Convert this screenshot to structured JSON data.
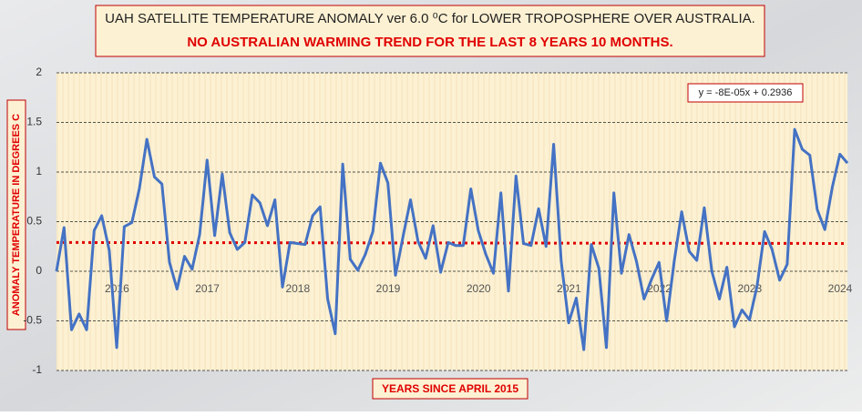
{
  "chart_data": {
    "type": "line",
    "title": "UAH SATELLITE TEMPERATURE ANOMALY ver 6.0 ⁰C for LOWER TROPOSPHERE OVER AUSTRALIA.",
    "subtitle": "NO AUSTRALIAN WARMING TREND FOR THE LAST 8 YEARS 10 MONTHS.",
    "x_label": "YEARS SINCE APRIL 2015",
    "y_label": "ANOMALY TEMPERATURE IN DEGREES C",
    "categories": [
      null,
      null,
      null,
      null,
      null,
      null,
      null,
      null,
      null,
      "2016",
      null,
      null,
      null,
      null,
      null,
      null,
      null,
      null,
      null,
      null,
      null,
      "2017",
      null,
      null,
      null,
      null,
      null,
      null,
      null,
      null,
      null,
      null,
      null,
      "2018",
      null,
      null,
      null,
      null,
      null,
      null,
      null,
      null,
      null,
      null,
      null,
      "2019",
      null,
      null,
      null,
      null,
      null,
      null,
      null,
      null,
      null,
      null,
      null,
      "2020",
      null,
      null,
      null,
      null,
      null,
      null,
      null,
      null,
      null,
      null,
      null,
      "2021",
      null,
      null,
      null,
      null,
      null,
      null,
      null,
      null,
      null,
      null,
      null,
      "2022",
      null,
      null,
      null,
      null,
      null,
      null,
      null,
      null,
      null,
      null,
      null,
      "2023",
      null,
      null,
      null,
      null,
      null,
      null,
      null,
      null,
      null,
      null,
      null,
      "2024"
    ],
    "series": [
      {
        "name": "UAH Australia",
        "color": "#4472c4",
        "values": [
          0.0,
          0.44,
          -0.59,
          -0.43,
          -0.59,
          0.41,
          0.56,
          0.21,
          -0.77,
          0.45,
          0.49,
          0.83,
          1.33,
          0.95,
          0.88,
          0.09,
          -0.18,
          0.15,
          0.02,
          0.37,
          1.12,
          0.36,
          0.98,
          0.39,
          0.22,
          0.29,
          0.77,
          0.69,
          0.46,
          0.72,
          -0.16,
          0.29,
          0.28,
          0.27,
          0.56,
          0.65,
          -0.28,
          -0.63,
          1.08,
          0.12,
          0.01,
          0.17,
          0.4,
          1.09,
          0.89,
          -0.04,
          0.35,
          0.72,
          0.3,
          0.13,
          0.46,
          -0.01,
          0.29,
          0.26,
          0.26,
          0.83,
          0.41,
          0.17,
          -0.02,
          0.79,
          -0.2,
          0.96,
          0.28,
          0.26,
          0.63,
          0.25,
          1.28,
          0.1,
          -0.52,
          -0.27,
          -0.79,
          0.27,
          0.03,
          -0.77,
          0.79,
          -0.02,
          0.37,
          0.1,
          -0.28,
          -0.08,
          0.09,
          -0.5,
          0.1,
          0.6,
          0.2,
          0.11,
          0.64,
          0.0,
          -0.28,
          0.04,
          -0.56,
          -0.39,
          -0.49,
          -0.15,
          0.4,
          0.22,
          -0.09,
          0.07,
          1.43,
          1.23,
          1.17,
          0.62,
          0.42,
          0.85,
          1.18,
          1.09
        ]
      }
    ],
    "trendline": {
      "label": "y = -8E-05x + 0.2936",
      "color": "#e00000",
      "start": 0.29,
      "end": 0.28
    },
    "ylim": [
      -1,
      2
    ],
    "yticks": [
      -1,
      -0.5,
      0,
      0.5,
      1,
      1.5,
      2
    ],
    "grid": true
  }
}
